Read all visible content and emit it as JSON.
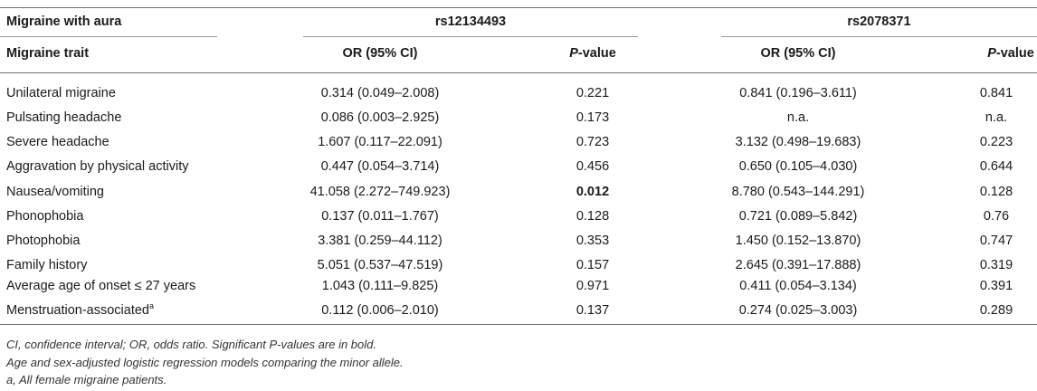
{
  "header": {
    "group_label": "Migraine with aura",
    "snp1": "rs12134493",
    "snp2": "rs2078371",
    "col_trait": "Migraine trait",
    "col_or": "OR (95% CI)",
    "col_p_italic": "P",
    "col_p_rest": "-value"
  },
  "rows": [
    {
      "trait": "Unilateral migraine",
      "or1": "0.314 (0.049–2.008)",
      "p1": "0.221",
      "or2": "0.841 (0.196–3.611)",
      "p2": "0.841"
    },
    {
      "trait": "Pulsating headache",
      "or1": "0.086 (0.003–2.925)",
      "p1": "0.173",
      "or2": "n.a.",
      "p2": "n.a."
    },
    {
      "trait": "Severe headache",
      "or1": "1.607 (0.117–22.091)",
      "p1": "0.723",
      "or2": "3.132 (0.498–19.683)",
      "p2": "0.223"
    },
    {
      "trait": "Aggravation by physical activity",
      "or1": "0.447 (0.054–3.714)",
      "p1": "0.456",
      "or2": "0.650 (0.105–4.030)",
      "p2": "0.644"
    },
    {
      "trait": "Nausea/vomiting",
      "or1": "41.058 (2.272–749.923)",
      "p1": "0.012",
      "or2": "8.780 (0.543–144.291)",
      "p2": "0.128"
    },
    {
      "trait": "Phonophobia",
      "or1": "0.137 (0.011–1.767)",
      "p1": "0.128",
      "or2": "0.721 (0.089–5.842)",
      "p2": "0.76"
    },
    {
      "trait": "Photophobia",
      "or1": "3.381 (0.259–44.112)",
      "p1": "0.353",
      "or2": "1.450 (0.152–13.870)",
      "p2": "0.747"
    },
    {
      "trait": "Family history",
      "or1": "5.051 (0.537–47.519)",
      "p1": "0.157",
      "or2": "2.645 (0.391–17.888)",
      "p2": "0.319"
    },
    {
      "trait": "Average age of onset ≤ 27 years",
      "or1": "1.043 (0.111–9.825)",
      "p1": "0.971",
      "or2": "0.411 (0.054–3.134)",
      "p2": "0.391"
    },
    {
      "trait": "Menstruation-associated",
      "trait_sup": "a",
      "or1": "0.112 (0.006–2.010)",
      "p1": "0.137",
      "or2": "0.274 (0.025–3.003)",
      "p2": "0.289"
    }
  ],
  "footnotes": [
    "CI, confidence interval; OR, odds ratio. Significant P-values are in bold.",
    "Age and sex-adjusted logistic regression models comparing the minor allele.",
    "a, All female migraine patients."
  ]
}
